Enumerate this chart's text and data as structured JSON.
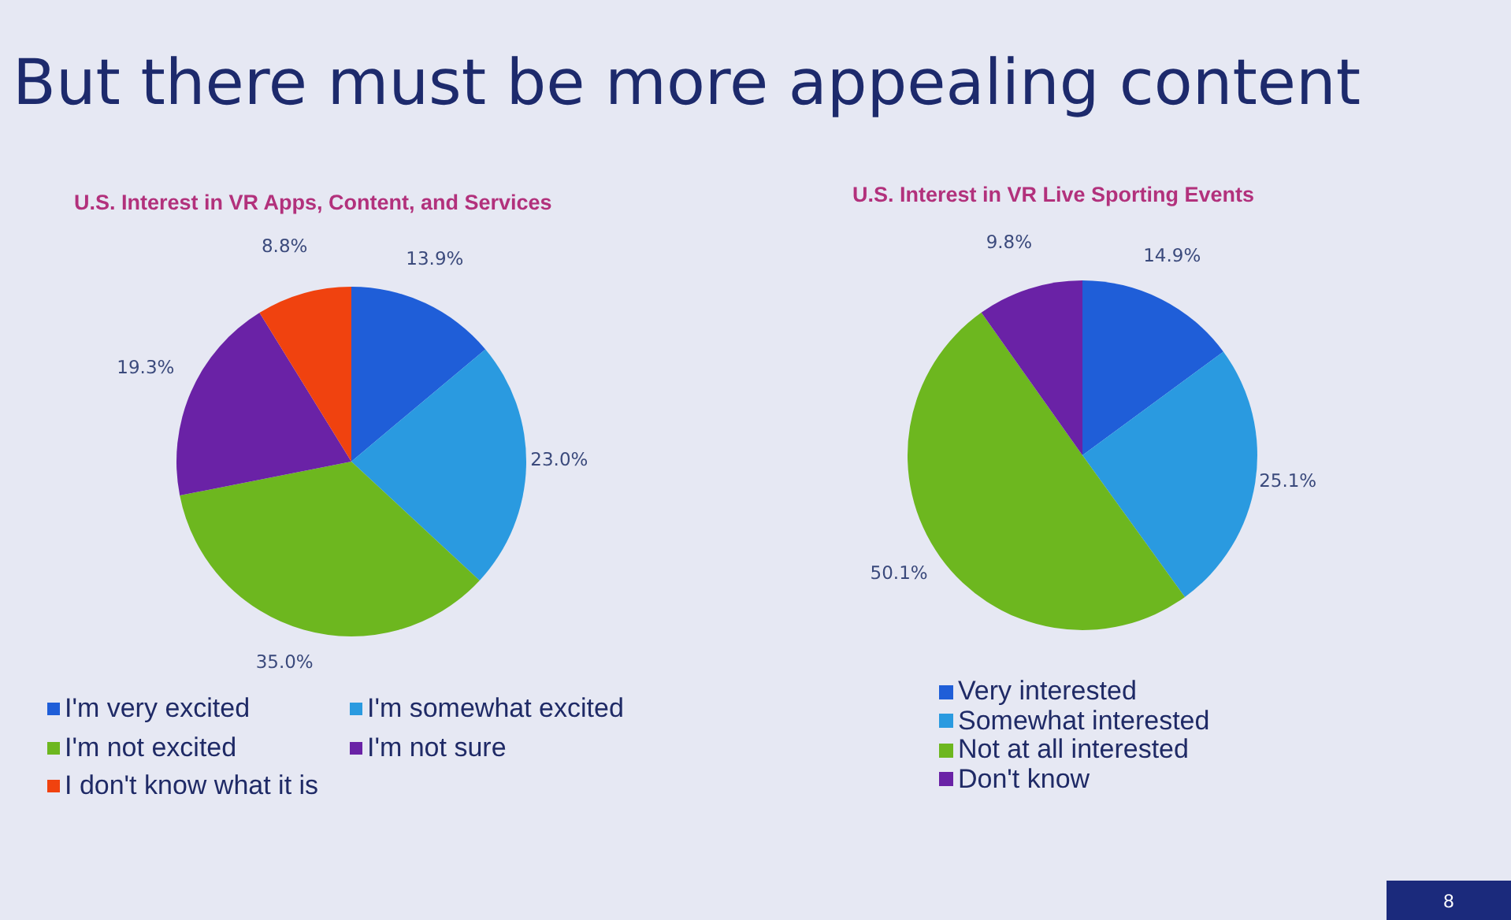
{
  "chart_data": [
    {
      "type": "other",
      "title": "But there must be more appealing content",
      "annotations": [
        "8"
      ]
    },
    {
      "type": "pie",
      "title": "U.S. Interest in VR Apps, Content, and Services",
      "categories": [
        "I'm very excited",
        "I'm somewhat excited",
        "I'm not excited",
        "I'm not sure",
        "I don't know what it is"
      ],
      "values": [
        13.9,
        23.0,
        35.0,
        19.3,
        8.8
      ],
      "value_labels": [
        "13.9%",
        "23.0%",
        "35.0%",
        "19.3%",
        "8.8%"
      ],
      "colors": [
        "#1f5ed8",
        "#2a9ae0",
        "#6db71f",
        "#6a22a6",
        "#f0420f"
      ],
      "legend": "bottom"
    },
    {
      "type": "pie",
      "title": "U.S. Interest in VR Live Sporting Events",
      "categories": [
        "Very interested",
        "Somewhat interested",
        "Not at all interested",
        "Don't know"
      ],
      "values": [
        14.9,
        25.1,
        50.1,
        9.8
      ],
      "value_labels": [
        "14.9%",
        "25.1%",
        "50.1%",
        "9.8%"
      ],
      "colors": [
        "#1f5ed8",
        "#2a9ae0",
        "#6db71f",
        "#6a22a6"
      ],
      "legend": "bottom"
    }
  ]
}
